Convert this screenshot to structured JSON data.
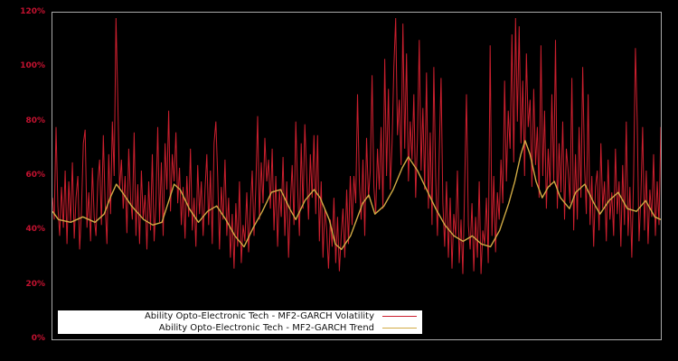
{
  "figure": {
    "background": "#000000",
    "plot_border_color": "#aaaaaa"
  },
  "y_axis": {
    "labels": [
      "120%",
      "100%",
      "80%",
      "60%",
      "40%",
      "20%",
      "0%"
    ],
    "values": [
      120,
      100,
      80,
      60,
      40,
      20,
      0
    ],
    "label_color": "#c41230"
  },
  "legend": {
    "background": "#ffffff",
    "items": [
      {
        "label": "Ability Opto-Electronic Tech - MF2-GARCH Volatility",
        "color": "#cc1f2e"
      },
      {
        "label": "Ability Opto-Electronic Tech - MF2-GARCH Trend",
        "color": "#d1ab45"
      }
    ]
  },
  "chart_data": {
    "type": "line",
    "title": "",
    "xlabel": "",
    "ylabel": "",
    "y_unit": "percent",
    "ylim": [
      0,
      120
    ],
    "grid": false,
    "x_axis_labels": "none",
    "legend_position": "inside-bottom-left",
    "series": [
      {
        "name": "Ability Opto-Electronic Tech - MF2-GARCH Volatility",
        "color": "#cc1f2e",
        "style": "jagged-daily-volatility",
        "values": [
          52,
          44,
          78,
          49,
          38,
          56,
          41,
          62,
          35,
          58,
          43,
          65,
          37,
          52,
          60,
          33,
          47,
          72,
          77,
          41,
          54,
          36,
          63,
          45,
          38,
          58,
          66,
          42,
          75,
          50,
          35,
          68,
          46,
          80,
          60,
          118,
          88,
          55,
          66,
          48,
          60,
          39,
          70,
          52,
          44,
          76,
          38,
          57,
          35,
          62,
          44,
          53,
          33,
          58,
          40,
          68,
          36,
          50,
          78,
          43,
          65,
          38,
          72,
          55,
          84,
          47,
          68,
          58,
          76,
          50,
          63,
          42,
          56,
          37,
          60,
          45,
          70,
          40,
          52,
          34,
          64,
          46,
          58,
          38,
          55,
          68,
          42,
          62,
          35,
          72,
          80,
          60,
          33,
          56,
          44,
          66,
          38,
          52,
          30,
          46,
          26,
          50,
          34,
          58,
          28,
          42,
          36,
          54,
          32,
          48,
          62,
          38,
          56,
          82,
          44,
          65,
          50,
          74,
          58,
          66,
          48,
          70,
          40,
          60,
          34,
          55,
          45,
          67,
          38,
          58,
          30,
          50,
          64,
          42,
          80,
          56,
          38,
          72,
          48,
          79,
          60,
          44,
          68,
          52,
          75,
          46,
          75,
          36,
          58,
          30,
          48,
          40,
          26,
          44,
          34,
          52,
          28,
          45,
          25,
          38,
          48,
          30,
          55,
          35,
          60,
          42,
          60,
          50,
          90,
          58,
          44,
          66,
          38,
          74,
          52,
          62,
          97,
          56,
          46,
          70,
          55,
          78,
          48,
          103,
          60,
          92,
          55,
          72,
          100,
          118,
          75,
          88,
          64,
          116,
          70,
          105,
          58,
          80,
          66,
          90,
          52,
          74,
          110,
          62,
          85,
          55,
          98,
          48,
          76,
          42,
          100,
          60,
          38,
          68,
          96,
          50,
          34,
          58,
          30,
          52,
          26,
          46,
          38,
          62,
          28,
          44,
          24,
          56,
          90,
          42,
          33,
          50,
          25,
          45,
          30,
          58,
          24,
          40,
          35,
          52,
          28,
          108,
          38,
          60,
          32,
          54,
          44,
          66,
          50,
          95,
          58,
          84,
          70,
          112,
          65,
          118,
          80,
          115,
          72,
          95,
          60,
          105,
          78,
          88,
          56,
          92,
          64,
          78,
          52,
          108,
          60,
          84,
          48,
          70,
          56,
          90,
          58,
          110,
          48,
          72,
          54,
          80,
          44,
          70,
          62,
          50,
          96,
          40,
          68,
          44,
          78,
          52,
          100,
          64,
          46,
          90,
          42,
          60,
          34,
          56,
          62,
          40,
          72,
          48,
          58,
          36,
          66,
          44,
          54,
          38,
          70,
          46,
          58,
          34,
          64,
          42,
          80,
          38,
          56,
          30,
          60,
          107,
          80,
          36,
          52,
          78,
          40,
          62,
          35,
          55,
          45,
          68,
          38,
          58,
          42,
          78
        ]
      },
      {
        "name": "Ability Opto-Electronic Tech - MF2-GARCH Trend",
        "color": "#d1ab45",
        "style": "smooth-trend",
        "points": [
          [
            0,
            47
          ],
          [
            0.01,
            44
          ],
          [
            0.03,
            43
          ],
          [
            0.05,
            45
          ],
          [
            0.07,
            43
          ],
          [
            0.085,
            46
          ],
          [
            0.095,
            52
          ],
          [
            0.105,
            57
          ],
          [
            0.115,
            54
          ],
          [
            0.13,
            49
          ],
          [
            0.15,
            44
          ],
          [
            0.165,
            42
          ],
          [
            0.18,
            43
          ],
          [
            0.19,
            50
          ],
          [
            0.2,
            57
          ],
          [
            0.21,
            55
          ],
          [
            0.225,
            48
          ],
          [
            0.24,
            43
          ],
          [
            0.255,
            47
          ],
          [
            0.27,
            49
          ],
          [
            0.285,
            44
          ],
          [
            0.3,
            38
          ],
          [
            0.315,
            34
          ],
          [
            0.33,
            41
          ],
          [
            0.345,
            47
          ],
          [
            0.36,
            54
          ],
          [
            0.375,
            55
          ],
          [
            0.39,
            48
          ],
          [
            0.4,
            44
          ],
          [
            0.415,
            51
          ],
          [
            0.43,
            55
          ],
          [
            0.44,
            52
          ],
          [
            0.455,
            44
          ],
          [
            0.465,
            35
          ],
          [
            0.475,
            33
          ],
          [
            0.49,
            38
          ],
          [
            0.5,
            44
          ],
          [
            0.51,
            50
          ],
          [
            0.52,
            53
          ],
          [
            0.53,
            46
          ],
          [
            0.545,
            49
          ],
          [
            0.56,
            55
          ],
          [
            0.575,
            63
          ],
          [
            0.585,
            67
          ],
          [
            0.6,
            62
          ],
          [
            0.615,
            55
          ],
          [
            0.63,
            48
          ],
          [
            0.645,
            42
          ],
          [
            0.66,
            38
          ],
          [
            0.675,
            36
          ],
          [
            0.69,
            38
          ],
          [
            0.705,
            35
          ],
          [
            0.72,
            34
          ],
          [
            0.735,
            40
          ],
          [
            0.75,
            50
          ],
          [
            0.76,
            58
          ],
          [
            0.77,
            68
          ],
          [
            0.777,
            73
          ],
          [
            0.785,
            68
          ],
          [
            0.795,
            58
          ],
          [
            0.805,
            52
          ],
          [
            0.815,
            56
          ],
          [
            0.825,
            58
          ],
          [
            0.835,
            52
          ],
          [
            0.85,
            48
          ],
          [
            0.86,
            54
          ],
          [
            0.875,
            57
          ],
          [
            0.89,
            50
          ],
          [
            0.9,
            46
          ],
          [
            0.915,
            51
          ],
          [
            0.93,
            54
          ],
          [
            0.945,
            48
          ],
          [
            0.96,
            47
          ],
          [
            0.975,
            51
          ],
          [
            0.99,
            45
          ],
          [
            1,
            44
          ]
        ]
      }
    ]
  }
}
